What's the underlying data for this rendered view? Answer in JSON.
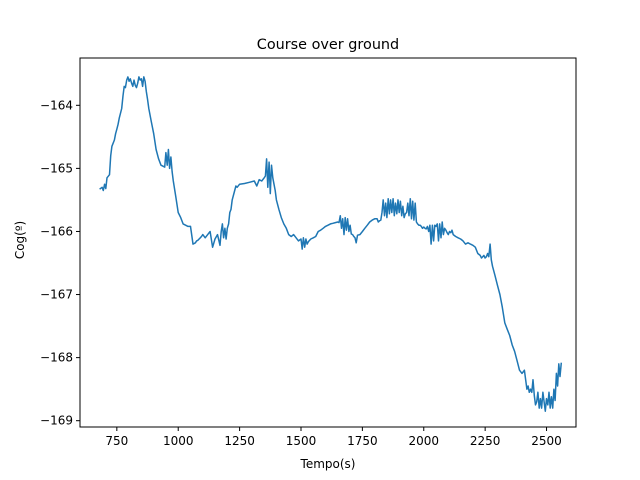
{
  "chart_data": {
    "type": "line",
    "title": "Course over ground",
    "xlabel": "Tempo(s)",
    "ylabel": "Cog(º)",
    "xlim": [
      600,
      2620
    ],
    "ylim": [
      -169.1,
      -163.25
    ],
    "x_ticks": [
      750,
      1000,
      1250,
      1500,
      1750,
      2000,
      2250,
      2500
    ],
    "y_ticks": [
      -169,
      -168,
      -167,
      -166,
      -165,
      -164
    ],
    "x_tick_labels": [
      "750",
      "1000",
      "1250",
      "1500",
      "1750",
      "2000",
      "2250",
      "2500"
    ],
    "y_tick_labels": [
      "−169",
      "−168",
      "−167",
      "−166",
      "−165",
      "−164"
    ],
    "grid": false,
    "line_color": "#1f77b4",
    "series": [
      {
        "x": [
          680,
          690,
          695,
          700,
          705,
          710,
          720,
          725,
          730,
          740,
          745,
          750,
          755,
          760,
          770,
          775,
          780,
          785,
          790,
          795,
          800,
          805,
          810,
          815,
          820,
          825,
          830,
          835,
          840,
          845,
          850,
          855,
          860,
          865,
          870,
          875,
          880,
          890,
          900,
          910,
          920,
          930,
          945,
          950,
          955,
          960,
          965,
          970,
          975,
          980,
          990,
          1000,
          1010,
          1020,
          1030,
          1040,
          1050,
          1060,
          1070,
          1075,
          1080,
          1085,
          1090,
          1095,
          1100,
          1110,
          1120,
          1130,
          1140,
          1150,
          1160,
          1170,
          1175,
          1180,
          1185,
          1190,
          1195,
          1200,
          1205,
          1210,
          1215,
          1220,
          1230,
          1235,
          1240,
          1250,
          1270,
          1290,
          1310,
          1320,
          1330,
          1340,
          1350,
          1355,
          1360,
          1365,
          1370,
          1375,
          1380,
          1385,
          1390,
          1395,
          1400,
          1410,
          1420,
          1430,
          1440,
          1450,
          1460,
          1470,
          1480,
          1490,
          1500,
          1505,
          1510,
          1515,
          1520,
          1525,
          1530,
          1540,
          1550,
          1560,
          1570,
          1580,
          1590,
          1600,
          1610,
          1620,
          1630,
          1640,
          1650,
          1655,
          1660,
          1665,
          1670,
          1675,
          1680,
          1685,
          1690,
          1695,
          1700,
          1705,
          1710,
          1715,
          1720,
          1725,
          1730,
          1740,
          1750,
          1760,
          1770,
          1780,
          1790,
          1800,
          1810,
          1815,
          1820,
          1825,
          1830,
          1835,
          1840,
          1845,
          1850,
          1855,
          1860,
          1865,
          1870,
          1875,
          1880,
          1885,
          1890,
          1895,
          1900,
          1905,
          1910,
          1915,
          1920,
          1925,
          1930,
          1935,
          1940,
          1945,
          1950,
          1955,
          1960,
          1965,
          1970,
          1975,
          1980,
          1985,
          1990,
          1995,
          2000,
          2005,
          2010,
          2015,
          2020,
          2025,
          2030,
          2035,
          2040,
          2045,
          2050,
          2055,
          2060,
          2065,
          2070,
          2075,
          2080,
          2085,
          2090,
          2095,
          2100,
          2105,
          2110,
          2115,
          2120,
          2130,
          2140,
          2150,
          2160,
          2170,
          2180,
          2190,
          2200,
          2210,
          2220,
          2230,
          2235,
          2240,
          2245,
          2250,
          2255,
          2260,
          2265,
          2270,
          2275,
          2280,
          2290,
          2300,
          2310,
          2320,
          2330,
          2340,
          2350,
          2360,
          2370,
          2380,
          2390,
          2400,
          2410,
          2420,
          2425,
          2430,
          2435,
          2440,
          2445,
          2450,
          2455,
          2460,
          2465,
          2470,
          2475,
          2480,
          2485,
          2490,
          2495,
          2500,
          2505,
          2510,
          2515,
          2520,
          2525,
          2530,
          2535,
          2540,
          2545,
          2550,
          2555,
          2560
        ],
        "y": [
          -165.33,
          -165.3,
          -165.35,
          -165.25,
          -165.32,
          -165.15,
          -165.1,
          -164.8,
          -164.65,
          -164.55,
          -164.45,
          -164.38,
          -164.3,
          -164.2,
          -164.05,
          -163.85,
          -163.7,
          -163.72,
          -163.6,
          -163.55,
          -163.62,
          -163.58,
          -163.65,
          -163.7,
          -163.6,
          -163.68,
          -163.72,
          -163.65,
          -163.55,
          -163.6,
          -163.58,
          -163.7,
          -163.55,
          -163.62,
          -163.78,
          -163.9,
          -164.05,
          -164.25,
          -164.45,
          -164.7,
          -164.85,
          -164.95,
          -164.98,
          -164.75,
          -164.95,
          -164.7,
          -165.0,
          -164.82,
          -165.05,
          -165.2,
          -165.45,
          -165.7,
          -165.78,
          -165.88,
          -165.9,
          -165.92,
          -165.92,
          -166.2,
          -166.18,
          -166.15,
          -166.14,
          -166.12,
          -166.1,
          -166.08,
          -166.05,
          -166.1,
          -166.05,
          -166.0,
          -166.25,
          -166.12,
          -166.05,
          -166.22,
          -166.0,
          -165.88,
          -166.1,
          -165.95,
          -166.12,
          -165.95,
          -165.88,
          -165.7,
          -165.65,
          -165.5,
          -165.35,
          -165.28,
          -165.3,
          -165.25,
          -165.24,
          -165.22,
          -165.2,
          -165.28,
          -165.18,
          -165.2,
          -165.15,
          -165.12,
          -164.85,
          -165.3,
          -164.9,
          -165.4,
          -164.95,
          -165.15,
          -165.25,
          -165.35,
          -165.5,
          -165.65,
          -165.78,
          -165.88,
          -165.95,
          -166.05,
          -166.08,
          -166.05,
          -166.1,
          -166.15,
          -166.12,
          -166.28,
          -166.1,
          -166.25,
          -166.12,
          -166.2,
          -166.16,
          -166.12,
          -166.1,
          -166.08,
          -166.0,
          -165.98,
          -165.95,
          -165.92,
          -165.9,
          -165.88,
          -165.87,
          -165.86,
          -165.85,
          -165.86,
          -165.75,
          -165.95,
          -165.8,
          -166.05,
          -165.78,
          -165.98,
          -165.8,
          -166.0,
          -165.9,
          -166.04,
          -166.05,
          -166.08,
          -166.1,
          -166.18,
          -166.06,
          -166.05,
          -166.0,
          -165.95,
          -165.9,
          -165.85,
          -165.82,
          -165.8,
          -165.8,
          -165.85,
          -165.83,
          -165.82,
          -165.7,
          -165.5,
          -165.75,
          -165.55,
          -165.78,
          -165.48,
          -165.72,
          -165.5,
          -165.7,
          -165.48,
          -165.75,
          -165.55,
          -165.72,
          -165.5,
          -165.7,
          -165.52,
          -165.75,
          -165.6,
          -165.78,
          -165.72,
          -165.7,
          -165.55,
          -165.75,
          -165.48,
          -165.8,
          -165.52,
          -165.82,
          -165.55,
          -165.85,
          -165.88,
          -165.9,
          -165.9,
          -165.92,
          -165.95,
          -165.93,
          -165.95,
          -165.96,
          -165.92,
          -166.0,
          -165.9,
          -166.2,
          -165.9,
          -166.15,
          -165.9,
          -165.92,
          -165.88,
          -166.15,
          -165.88,
          -166.1,
          -165.85,
          -166.05,
          -165.95,
          -165.98,
          -166.02,
          -166.05,
          -166.0,
          -166.02,
          -165.98,
          -166.05,
          -166.08,
          -166.1,
          -166.12,
          -166.15,
          -166.2,
          -166.18,
          -166.2,
          -166.22,
          -166.25,
          -166.35,
          -166.38,
          -166.42,
          -166.4,
          -166.38,
          -166.42,
          -166.4,
          -166.35,
          -166.4,
          -166.2,
          -166.45,
          -166.55,
          -166.7,
          -166.85,
          -167.0,
          -167.2,
          -167.45,
          -167.55,
          -167.65,
          -167.8,
          -167.9,
          -168.05,
          -168.2,
          -168.25,
          -168.2,
          -168.5,
          -168.45,
          -168.55,
          -168.5,
          -168.55,
          -168.35,
          -168.6,
          -168.75,
          -168.7,
          -168.55,
          -168.8,
          -168.65,
          -168.8,
          -168.55,
          -168.7,
          -168.85,
          -168.65,
          -168.75,
          -168.55,
          -168.8,
          -168.62,
          -168.8,
          -168.5,
          -168.68,
          -168.25,
          -168.45,
          -168.1,
          -168.3,
          -168.08
        ]
      }
    ]
  }
}
